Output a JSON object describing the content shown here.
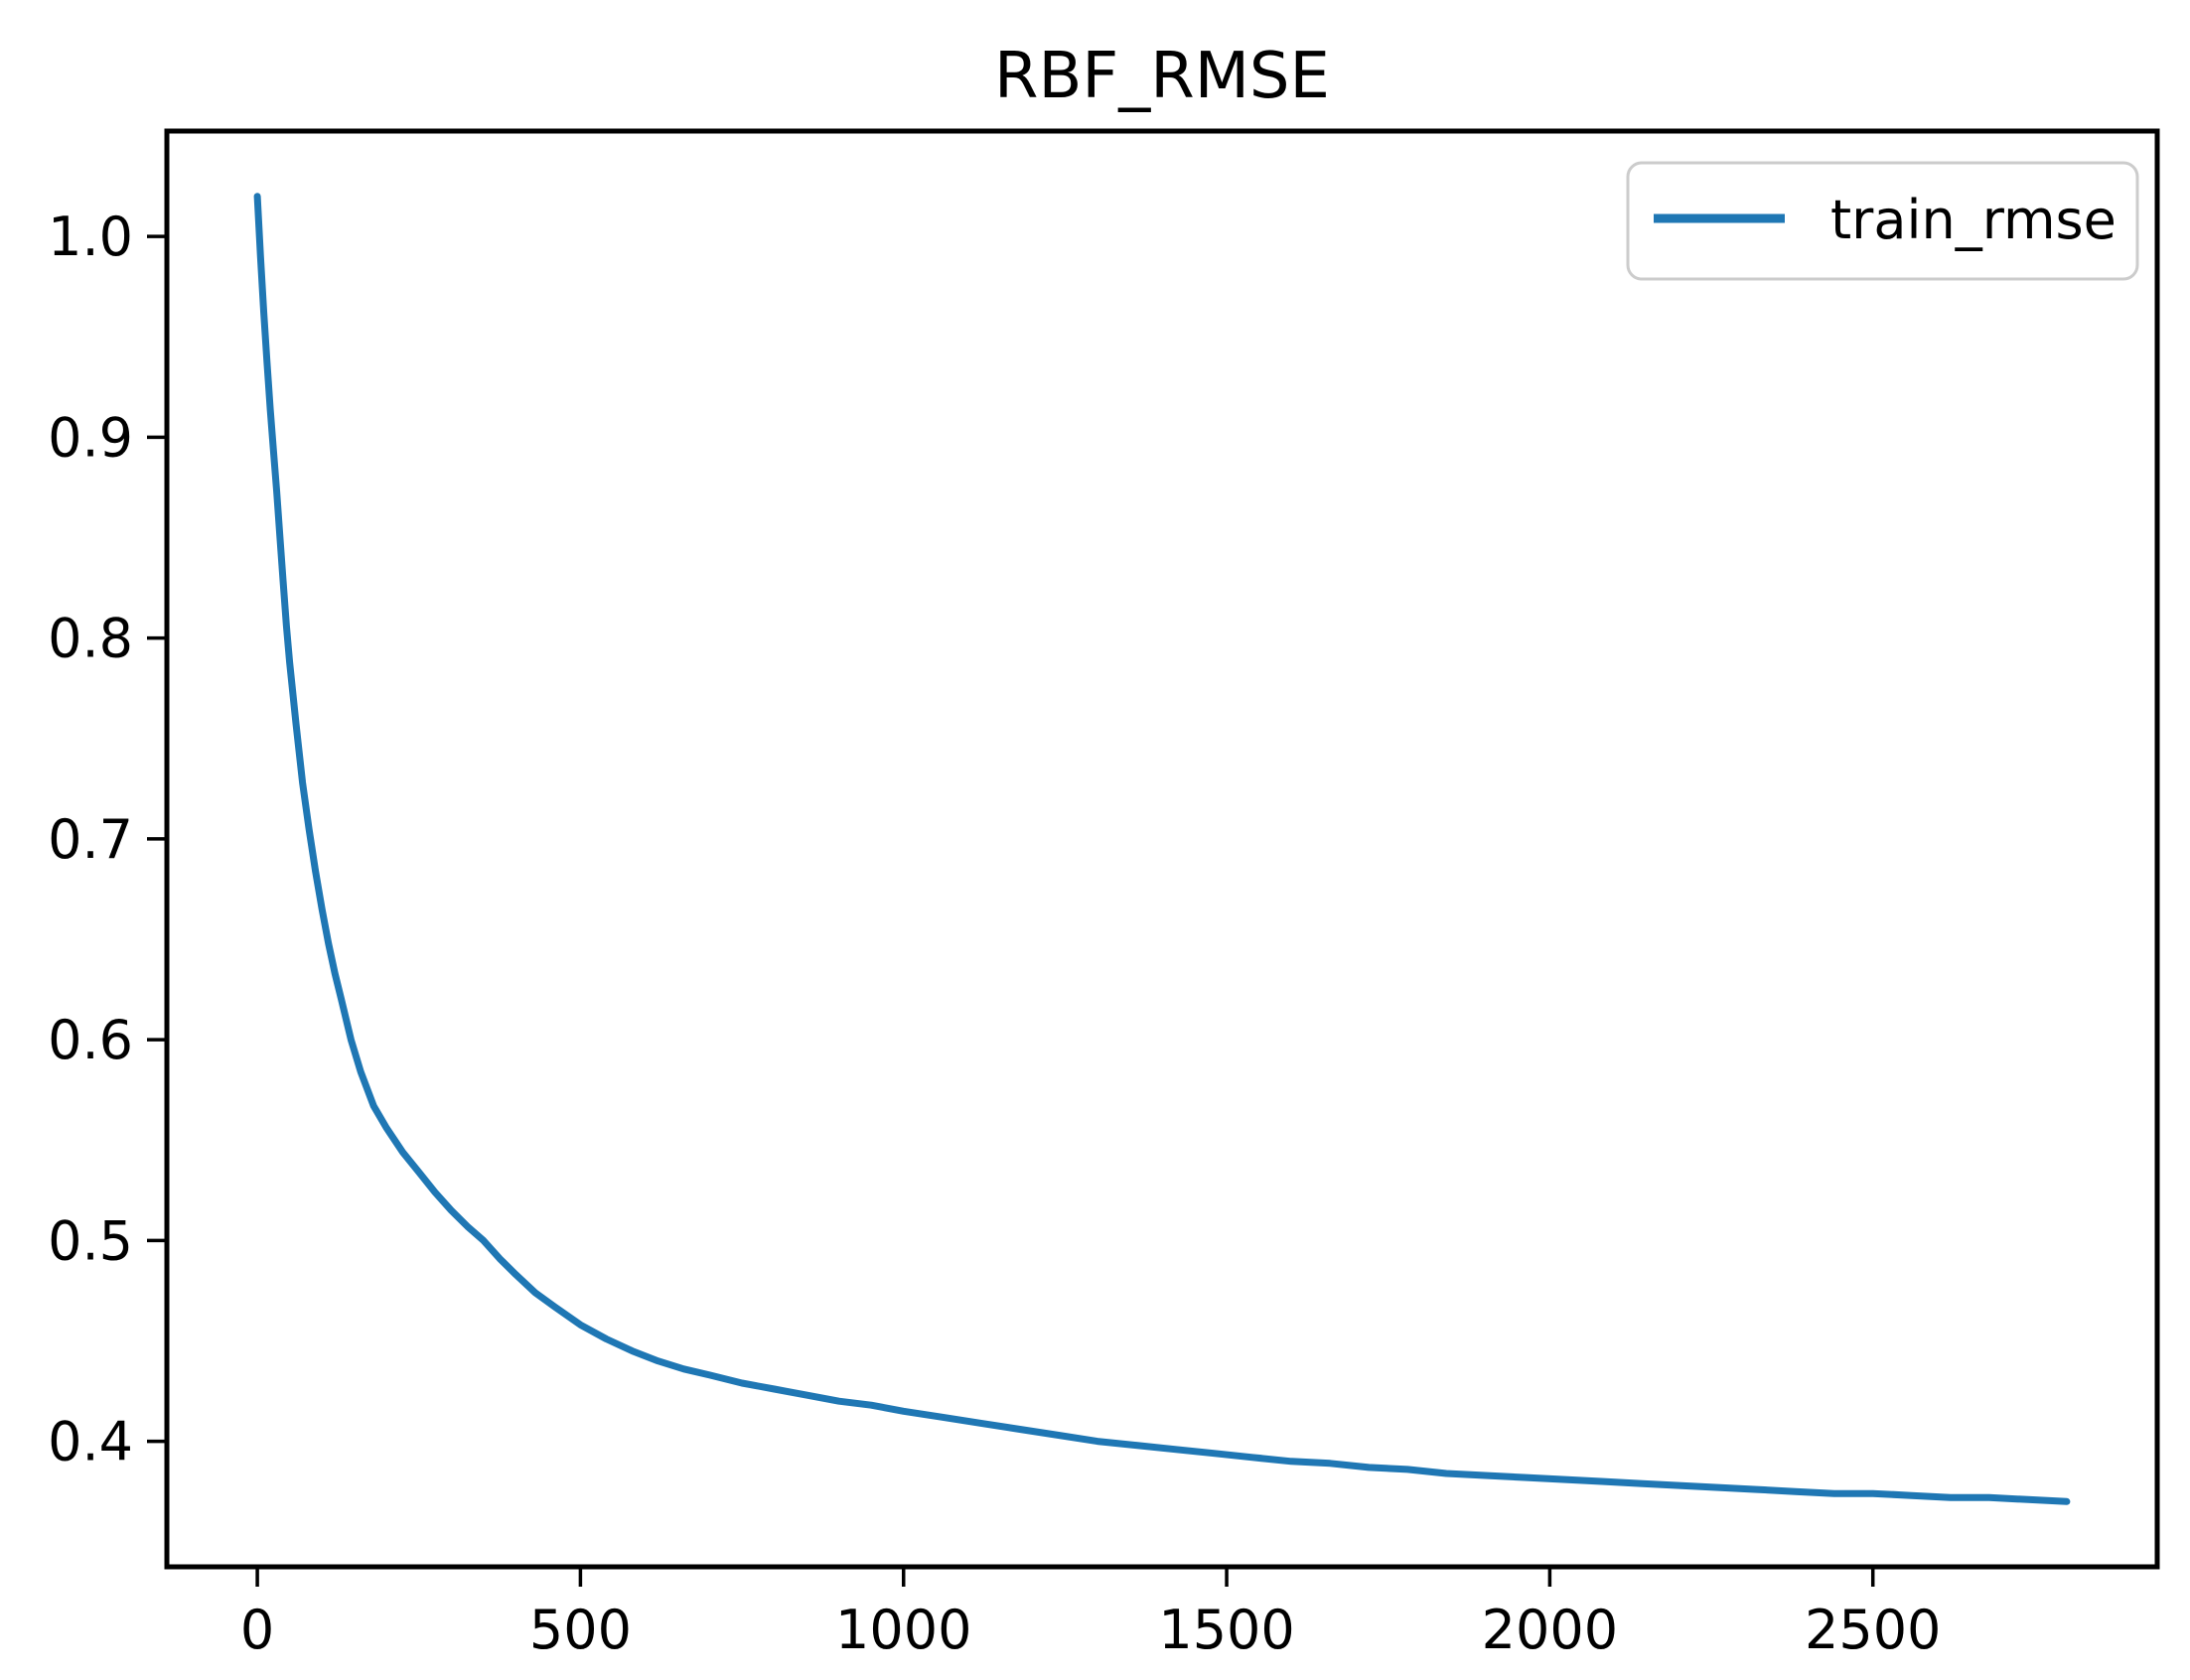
{
  "figure": {
    "title": "RBF_RMSE",
    "background": "#ffffff"
  },
  "legend": {
    "position": "upper right",
    "entries": [
      {
        "label": "train_rmse",
        "color": "#1f77b4"
      }
    ]
  },
  "colors": {
    "line": "#1f77b4",
    "spine": "#000000",
    "tick": "#000000",
    "text": "#000000",
    "legend_border": "#cccccc",
    "background": "#ffffff"
  },
  "chart_data": {
    "type": "line",
    "title": "RBF_RMSE",
    "xlabel": "",
    "ylabel": "",
    "grid": false,
    "legend_position": "upper right",
    "xlim": [
      -140,
      2940
    ],
    "ylim": [
      0.3375,
      1.0525
    ],
    "xticks": [
      0,
      500,
      1000,
      1500,
      2000,
      2500
    ],
    "xtick_labels": [
      "0",
      "500",
      "1000",
      "1500",
      "2000",
      "2500"
    ],
    "yticks": [
      0.4,
      0.5,
      0.6,
      0.7,
      0.8,
      0.9,
      1.0
    ],
    "ytick_labels": [
      "0.4",
      "0.5",
      "0.6",
      "0.7",
      "0.8",
      "0.9",
      "1.0"
    ],
    "series": [
      {
        "name": "train_rmse",
        "color": "#1f77b4",
        "x": [
          0,
          5,
          10,
          15,
          20,
          25,
          30,
          35,
          40,
          45,
          50,
          60,
          70,
          80,
          90,
          100,
          110,
          120,
          130,
          145,
          160,
          180,
          200,
          225,
          250,
          275,
          300,
          325,
          350,
          375,
          400,
          430,
          460,
          500,
          540,
          580,
          620,
          660,
          700,
          750,
          800,
          850,
          900,
          950,
          1000,
          1060,
          1120,
          1180,
          1240,
          1300,
          1360,
          1420,
          1480,
          1540,
          1600,
          1660,
          1720,
          1780,
          1840,
          1900,
          1960,
          2020,
          2080,
          2140,
          2200,
          2260,
          2320,
          2380,
          2440,
          2500,
          2560,
          2620,
          2680,
          2740,
          2800
        ],
        "y": [
          1.02,
          0.99,
          0.962,
          0.937,
          0.914,
          0.893,
          0.873,
          0.85,
          0.828,
          0.806,
          0.788,
          0.757,
          0.728,
          0.705,
          0.684,
          0.665,
          0.648,
          0.633,
          0.62,
          0.6,
          0.584,
          0.567,
          0.556,
          0.544,
          0.534,
          0.524,
          0.515,
          0.507,
          0.5,
          0.491,
          0.483,
          0.474,
          0.467,
          0.458,
          0.451,
          0.445,
          0.44,
          0.436,
          0.433,
          0.429,
          0.426,
          0.423,
          0.42,
          0.418,
          0.415,
          0.412,
          0.409,
          0.406,
          0.403,
          0.4,
          0.398,
          0.396,
          0.394,
          0.392,
          0.39,
          0.389,
          0.387,
          0.386,
          0.384,
          0.383,
          0.382,
          0.381,
          0.38,
          0.379,
          0.378,
          0.377,
          0.376,
          0.375,
          0.374,
          0.374,
          0.373,
          0.372,
          0.372,
          0.371,
          0.37
        ]
      }
    ]
  }
}
